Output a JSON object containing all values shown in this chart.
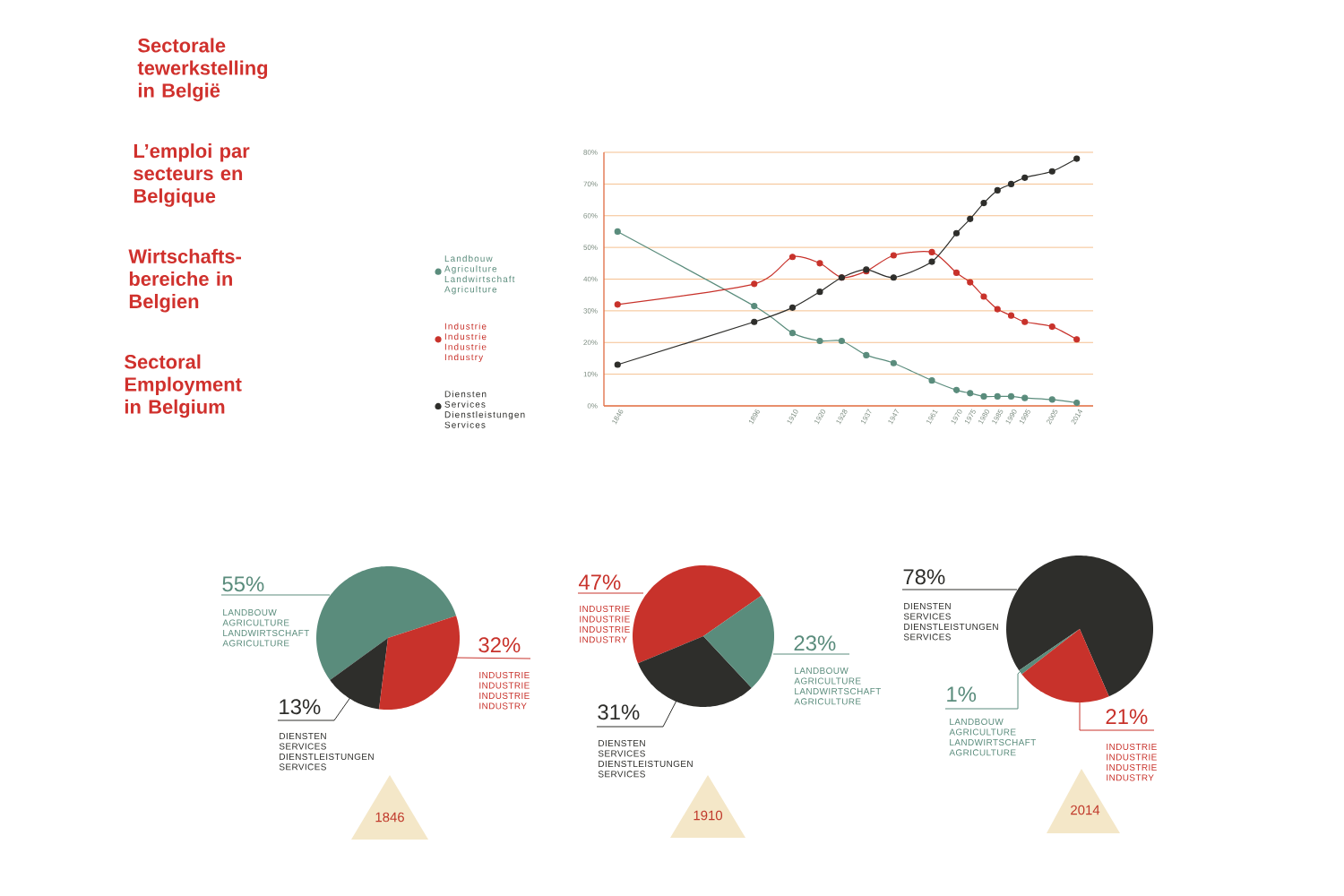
{
  "chart_data": [
    {
      "type": "other",
      "annotations": [
        "Sectorale tewerkstelling in België",
        "L’emploi par secteurs en Belgique",
        "Wirtschafts-bereiche in Belgien",
        "Sectoral Employment in Belgium"
      ]
    },
    {
      "type": "line",
      "x": [
        1846,
        1896,
        1910,
        1920,
        1928,
        1937,
        1947,
        1961,
        1970,
        1975,
        1980,
        1985,
        1990,
        1995,
        2005,
        2014
      ],
      "xlim": [
        1841,
        2020
      ],
      "xticks": [
        1846,
        1896,
        1910,
        1920,
        1928,
        1937,
        1947,
        1961,
        1970,
        1975,
        1980,
        1985,
        1990,
        1995,
        2005,
        2014
      ],
      "ylim": [
        0,
        80
      ],
      "yticks": [
        {
          "value": 0,
          "label": "0%"
        },
        {
          "value": 10,
          "label": "10%"
        },
        {
          "value": 20,
          "label": "20%"
        },
        {
          "value": 30,
          "label": "30%"
        },
        {
          "value": 40,
          "label": "40%"
        },
        {
          "value": 50,
          "label": "50%"
        },
        {
          "value": 60,
          "label": "60%"
        },
        {
          "value": 70,
          "label": "70%"
        },
        {
          "value": 80,
          "label": "80%"
        }
      ],
      "grid": "y",
      "legend": "left",
      "marker": "circle",
      "series": [
        {
          "name": "Landbouw Agriculture Landwirtschaft Agriculture",
          "color": "#5a8c7c",
          "values": [
            55,
            31.5,
            23,
            20.5,
            20.5,
            16,
            13.5,
            8,
            5,
            4,
            3,
            3,
            3,
            2.5,
            2,
            1
          ]
        },
        {
          "name": "Industrie Industrie Industrie Industry",
          "color": "#c8322b",
          "values": [
            32,
            38.5,
            47,
            45,
            40.5,
            42.5,
            47.5,
            48.5,
            42,
            39,
            34.5,
            30.5,
            28.5,
            26.5,
            25,
            21
          ]
        },
        {
          "name": "Diensten Services Dienstleistungen Services",
          "color": "#2e2e2b",
          "values": [
            13,
            26.5,
            31,
            36,
            40.5,
            43,
            40.5,
            45.5,
            54.5,
            59,
            64,
            68,
            70,
            72,
            74,
            78
          ]
        }
      ]
    },
    {
      "type": "pie",
      "title": "1846",
      "categories": [
        "LANDBOUW AGRICULTURE LANDWIRTSCHAFT AGRICULTURE",
        "DIENSTEN SERVICES DIENSTLEISTUNGEN SERVICES",
        "INDUSTRIE INDUSTRIE INDUSTRIE INDUSTRY"
      ],
      "values": [
        55,
        13,
        32
      ],
      "colors": [
        "#5a8c7c",
        "#2e2e2b",
        "#c8322b"
      ],
      "value_labels": [
        "55%",
        "13%",
        "32%"
      ]
    },
    {
      "type": "pie",
      "title": "1910",
      "categories": [
        "INDUSTRIE INDUSTRIE INDUSTRIE INDUSTRY",
        "DIENSTEN SERVICES DIENSTLEISTUNGEN SERVICES",
        "LANDBOUW AGRICULTURE LANDWIRTSCHAFT AGRICULTURE"
      ],
      "values": [
        47,
        31,
        23
      ],
      "colors": [
        "#c8322b",
        "#2e2e2b",
        "#5a8c7c"
      ],
      "value_labels": [
        "47%",
        "31%",
        "23%"
      ]
    },
    {
      "type": "pie",
      "title": "2014",
      "categories": [
        "DIENSTEN SERVICES DIENSTLEISTUNGEN SERVICES",
        "LANDBOUW AGRICULTURE LANDWIRTSCHAFT AGRICULTURE",
        "INDUSTRIE INDUSTRIE INDUSTRIE INDUSTRY"
      ],
      "values": [
        78,
        1,
        21
      ],
      "colors": [
        "#2e2e2b",
        "#5a8c7c",
        "#c8322b"
      ],
      "value_labels": [
        "78%",
        "1%",
        "21%"
      ]
    }
  ]
}
